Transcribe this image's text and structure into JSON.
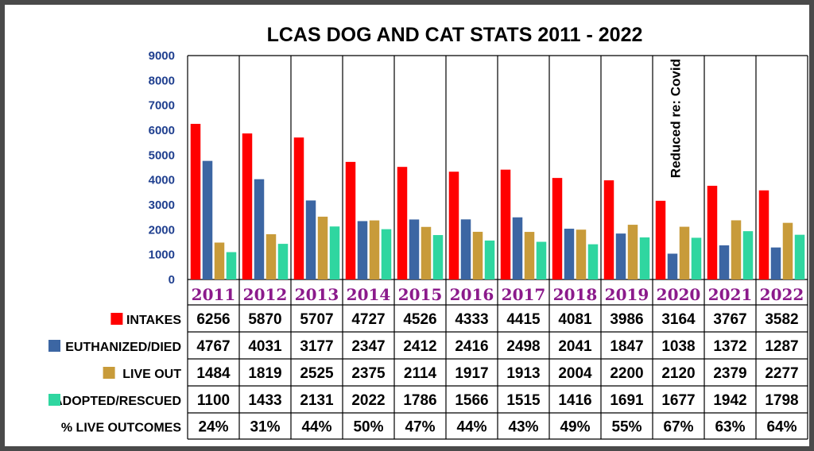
{
  "chart_data": {
    "type": "bar",
    "title": "LCAS DOG AND CAT STATS 2011 - 2022",
    "categories": [
      "2011",
      "2012",
      "2013",
      "2014",
      "2015",
      "2016",
      "2017",
      "2018",
      "2019",
      "2020",
      "2021",
      "2022"
    ],
    "ylim": [
      0,
      9000
    ],
    "yticks": [
      0,
      1000,
      2000,
      3000,
      4000,
      5000,
      6000,
      7000,
      8000,
      9000
    ],
    "grid": "vertical",
    "series": [
      {
        "name": "INTAKES",
        "color": "#ff0000",
        "values": [
          6256,
          5870,
          5707,
          4727,
          4526,
          4333,
          4415,
          4081,
          3986,
          3164,
          3767,
          3582
        ]
      },
      {
        "name": "EUTHANIZED/DIED",
        "color": "#3c66a3",
        "values": [
          4767,
          4031,
          3177,
          2347,
          2412,
          2416,
          2498,
          2041,
          1847,
          1038,
          1372,
          1287
        ]
      },
      {
        "name": "LIVE OUT",
        "color": "#c89b3a",
        "values": [
          1484,
          1819,
          2525,
          2375,
          2114,
          1917,
          1913,
          2004,
          2200,
          2120,
          2379,
          2277
        ]
      },
      {
        "name": "ADOPTED/RESCUED",
        "color": "#2fd6a0",
        "values": [
          1100,
          1433,
          2131,
          2022,
          1786,
          1566,
          1515,
          1416,
          1691,
          1677,
          1942,
          1798
        ]
      }
    ],
    "table_rows": [
      {
        "label": "% LIVE OUTCOMES",
        "values": [
          "24%",
          "31%",
          "44%",
          "50%",
          "47%",
          "44%",
          "43%",
          "49%",
          "55%",
          "67%",
          "63%",
          "64%"
        ]
      }
    ],
    "annotations": [
      {
        "text": "Reduced re: Covid",
        "category": "2020",
        "orientation": "vertical"
      }
    ]
  }
}
